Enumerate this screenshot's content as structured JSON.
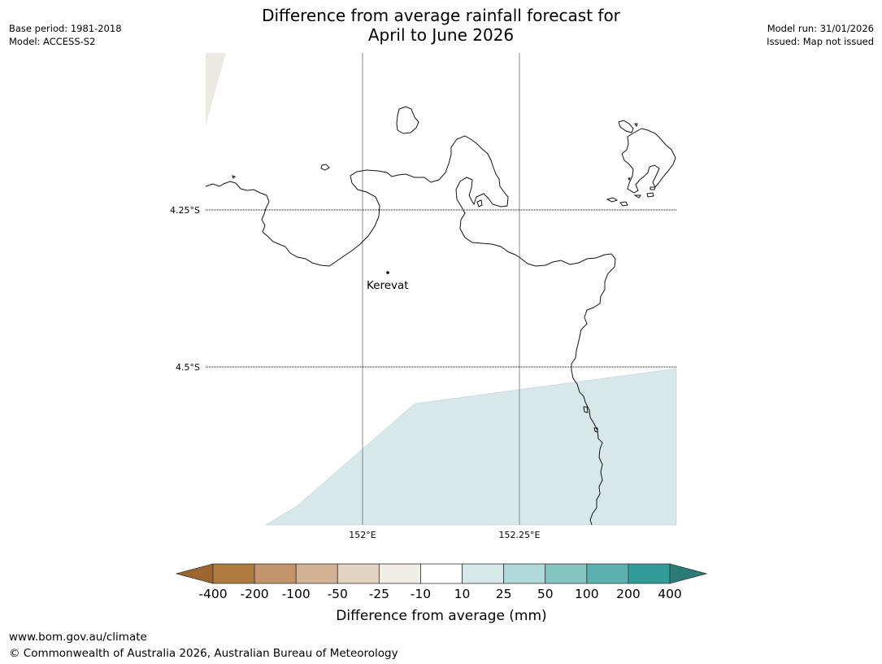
{
  "title_line1": "Difference from average rainfall forecast for",
  "title_line2": "April to June 2026",
  "meta_left": {
    "base_period": "Base period: 1981-2018",
    "model": "Model: ACCESS-S2"
  },
  "meta_right": {
    "model_run": "Model run: 31/01/2026",
    "issued": "Issued: Map not issued"
  },
  "map": {
    "lat_labels": [
      "4.25°S",
      "4.5°S"
    ],
    "lon_labels": [
      "152°E",
      "152.25°E"
    ],
    "place": {
      "name": "Kerevat",
      "lon": 152.04,
      "lat": -4.35
    }
  },
  "colorbar": {
    "label": "Difference from average (mm)",
    "ticks": [
      "-400",
      "-200",
      "-100",
      "-50",
      "-25",
      "-10",
      "10",
      "25",
      "50",
      "100",
      "200",
      "400"
    ],
    "colors": [
      "#9c6430",
      "#b07a3f",
      "#c39469",
      "#d3b294",
      "#e4d3c1",
      "#f0ede7",
      "#ffffff",
      "#d6e9e9",
      "#b0dada",
      "#85c4c1",
      "#5bb0b0",
      "#319b98",
      "#2a7c79"
    ]
  },
  "footer": {
    "url": "www.bom.gov.au/climate",
    "copyright": "© Commonwealth of Australia 2026, Australian Bureau of Meteorology"
  }
}
